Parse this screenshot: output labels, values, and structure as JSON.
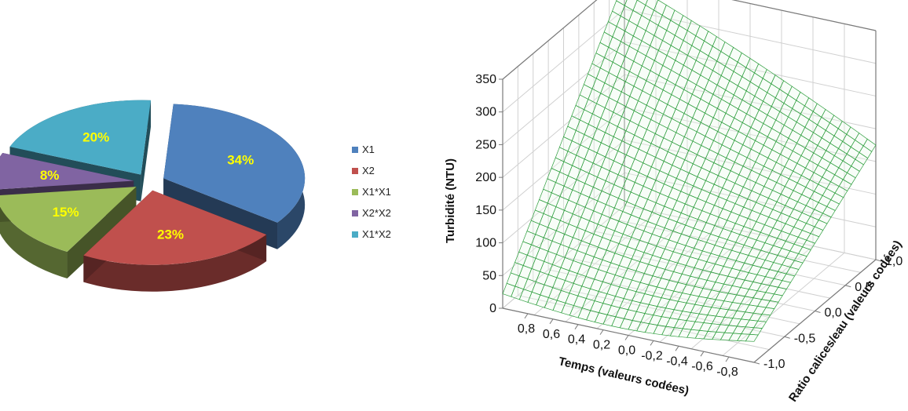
{
  "chart_data": [
    {
      "type": "pie",
      "style": "3d-exploded",
      "legend_position": "right",
      "slices": [
        {
          "label": "X1",
          "value": 34,
          "text": "34%",
          "color": "#4f81bd"
        },
        {
          "label": "X2",
          "value": 23,
          "text": "23%",
          "color": "#c0504d"
        },
        {
          "label": "X1*X1",
          "value": 15,
          "text": "15%",
          "color": "#9bbb59"
        },
        {
          "label": "X2*X2",
          "value": 8,
          "text": "8%",
          "color": "#8064a2"
        },
        {
          "label": "X1*X2",
          "value": 20,
          "text": "20%",
          "color": "#4bacc6"
        }
      ]
    },
    {
      "type": "surface",
      "grid": true,
      "mesh_color": "#2e9e3e",
      "zlabel": "Turbidité (NTU)",
      "xlabel": "Temps (valeurs codées)",
      "ylabel": "Ratio calices/eau (valeurs codées)",
      "z_ticks": [
        "0",
        "50",
        "100",
        "150",
        "200",
        "250",
        "300",
        "350"
      ],
      "zlim": [
        0,
        350
      ],
      "x_ticks": [
        "0,8",
        "0,6",
        "0,4",
        "0,2",
        "0,0",
        "-0,2",
        "-0,4",
        "-0,6",
        "-0,8"
      ],
      "xlim": [
        -1,
        1
      ],
      "y_ticks": [
        "-1,0",
        "-0,5",
        "0,0",
        "0,5",
        "1,0"
      ],
      "ylim": [
        -1,
        1
      ],
      "corner_values": {
        "temps_1_ratio_-1": 22,
        "temps_-1_ratio_-1": 32,
        "temps_1_ratio_1": 345,
        "temps_-1_ratio_1": 175
      }
    }
  ]
}
